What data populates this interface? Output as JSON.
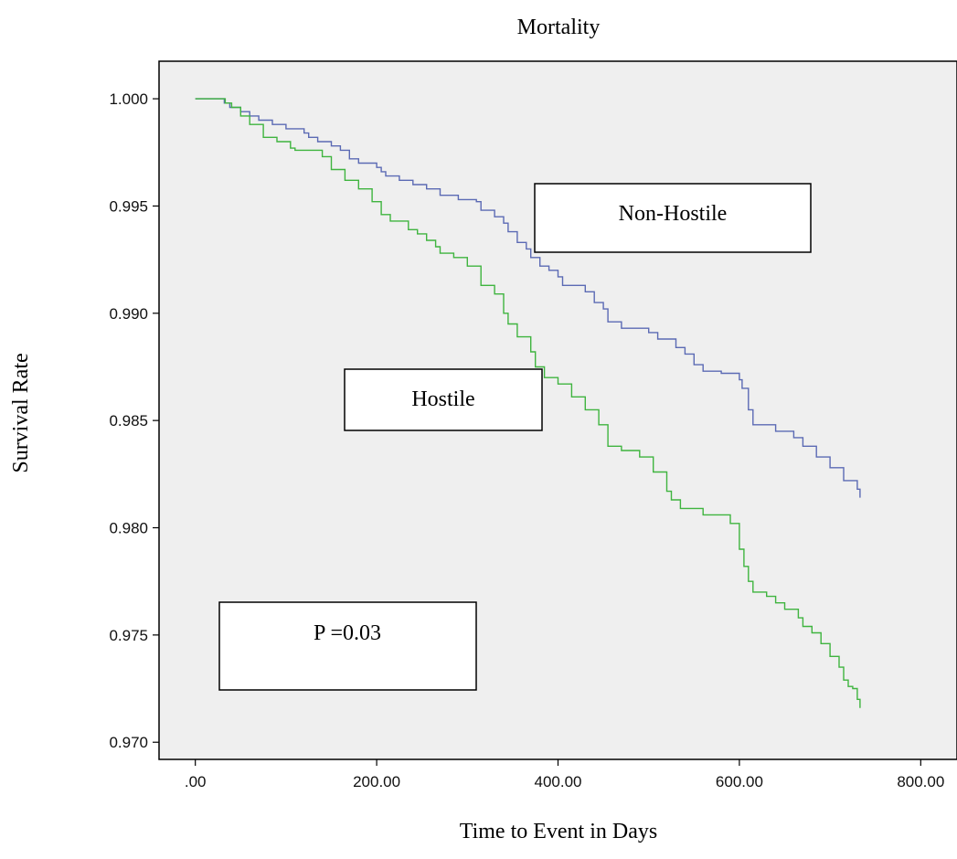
{
  "chart_data": {
    "type": "line",
    "title": "Mortality",
    "xlabel": "Time to Event in Days",
    "ylabel": "Survival Rate",
    "xlim": [
      -40,
      840
    ],
    "ylim": [
      0.9692,
      1.00175
    ],
    "x_ticks": [
      0,
      200,
      400,
      600,
      800
    ],
    "x_tick_labels": [
      ".00",
      "200.00",
      "400.00",
      "600.00",
      "800.00"
    ],
    "y_ticks": [
      1.0,
      0.995,
      0.99,
      0.985,
      0.98,
      0.975,
      0.97
    ],
    "y_tick_labels": [
      "1.000",
      "0.995",
      "0.990",
      "0.985",
      "0.980",
      "0.975",
      "0.970"
    ],
    "grid": false,
    "series": [
      {
        "name": "Non-Hostile",
        "color": "#5b6ab4",
        "points": [
          [
            0,
            1.0
          ],
          [
            28,
            1.0
          ],
          [
            32,
            0.9998
          ],
          [
            38,
            0.9996
          ],
          [
            50,
            0.9994
          ],
          [
            60,
            0.9992
          ],
          [
            70,
            0.999
          ],
          [
            85,
            0.9988
          ],
          [
            100,
            0.9986
          ],
          [
            120,
            0.9984
          ],
          [
            125,
            0.9982
          ],
          [
            135,
            0.998
          ],
          [
            150,
            0.9978
          ],
          [
            160,
            0.9976
          ],
          [
            170,
            0.9972
          ],
          [
            180,
            0.997
          ],
          [
            200,
            0.9968
          ],
          [
            205,
            0.9966
          ],
          [
            210,
            0.9964
          ],
          [
            225,
            0.9962
          ],
          [
            240,
            0.996
          ],
          [
            255,
            0.9958
          ],
          [
            270,
            0.9955
          ],
          [
            290,
            0.9953
          ],
          [
            310,
            0.9952
          ],
          [
            315,
            0.9948
          ],
          [
            330,
            0.9945
          ],
          [
            340,
            0.9942
          ],
          [
            345,
            0.9938
          ],
          [
            355,
            0.9933
          ],
          [
            365,
            0.993
          ],
          [
            370,
            0.9926
          ],
          [
            380,
            0.9922
          ],
          [
            390,
            0.992
          ],
          [
            400,
            0.9917
          ],
          [
            405,
            0.9913
          ],
          [
            430,
            0.991
          ],
          [
            440,
            0.9905
          ],
          [
            450,
            0.9902
          ],
          [
            455,
            0.9896
          ],
          [
            470,
            0.9893
          ],
          [
            500,
            0.9891
          ],
          [
            510,
            0.9888
          ],
          [
            530,
            0.9884
          ],
          [
            540,
            0.9881
          ],
          [
            550,
            0.9876
          ],
          [
            560,
            0.9873
          ],
          [
            580,
            0.9872
          ],
          [
            600,
            0.9869
          ],
          [
            603,
            0.9865
          ],
          [
            610,
            0.9855
          ],
          [
            615,
            0.9848
          ],
          [
            640,
            0.9845
          ],
          [
            660,
            0.9842
          ],
          [
            670,
            0.9838
          ],
          [
            685,
            0.9833
          ],
          [
            700,
            0.9828
          ],
          [
            715,
            0.9822
          ],
          [
            730,
            0.9818
          ],
          [
            733,
            0.9814
          ]
        ]
      },
      {
        "name": "Hostile",
        "color": "#3fb43f",
        "points": [
          [
            0,
            1.0
          ],
          [
            28,
            1.0
          ],
          [
            33,
            0.9998
          ],
          [
            40,
            0.9996
          ],
          [
            50,
            0.9992
          ],
          [
            60,
            0.9988
          ],
          [
            75,
            0.9982
          ],
          [
            90,
            0.998
          ],
          [
            105,
            0.9977
          ],
          [
            110,
            0.9976
          ],
          [
            140,
            0.9973
          ],
          [
            150,
            0.9967
          ],
          [
            165,
            0.9962
          ],
          [
            180,
            0.9958
          ],
          [
            195,
            0.9952
          ],
          [
            205,
            0.9946
          ],
          [
            215,
            0.9943
          ],
          [
            235,
            0.9939
          ],
          [
            245,
            0.9937
          ],
          [
            255,
            0.9934
          ],
          [
            265,
            0.9931
          ],
          [
            270,
            0.9928
          ],
          [
            285,
            0.9926
          ],
          [
            300,
            0.9922
          ],
          [
            310,
            0.9922
          ],
          [
            315,
            0.9913
          ],
          [
            330,
            0.9909
          ],
          [
            340,
            0.99
          ],
          [
            345,
            0.9895
          ],
          [
            355,
            0.9889
          ],
          [
            370,
            0.9882
          ],
          [
            375,
            0.9875
          ],
          [
            385,
            0.987
          ],
          [
            400,
            0.9867
          ],
          [
            415,
            0.9861
          ],
          [
            430,
            0.9855
          ],
          [
            445,
            0.9848
          ],
          [
            455,
            0.9838
          ],
          [
            470,
            0.9836
          ],
          [
            490,
            0.9833
          ],
          [
            505,
            0.9826
          ],
          [
            520,
            0.9817
          ],
          [
            525,
            0.9813
          ],
          [
            535,
            0.9809
          ],
          [
            560,
            0.9806
          ],
          [
            590,
            0.9802
          ],
          [
            600,
            0.979
          ],
          [
            605,
            0.9782
          ],
          [
            610,
            0.9775
          ],
          [
            615,
            0.977
          ],
          [
            630,
            0.9768
          ],
          [
            640,
            0.9765
          ],
          [
            650,
            0.9762
          ],
          [
            665,
            0.9758
          ],
          [
            670,
            0.9754
          ],
          [
            680,
            0.9751
          ],
          [
            690,
            0.9746
          ],
          [
            700,
            0.974
          ],
          [
            710,
            0.9735
          ],
          [
            715,
            0.9729
          ],
          [
            720,
            0.9726
          ],
          [
            725,
            0.9725
          ],
          [
            730,
            0.972
          ],
          [
            733,
            0.9716
          ]
        ]
      }
    ],
    "annotations": [
      "Non-Hostile",
      "Hostile",
      "P =0.03"
    ]
  }
}
